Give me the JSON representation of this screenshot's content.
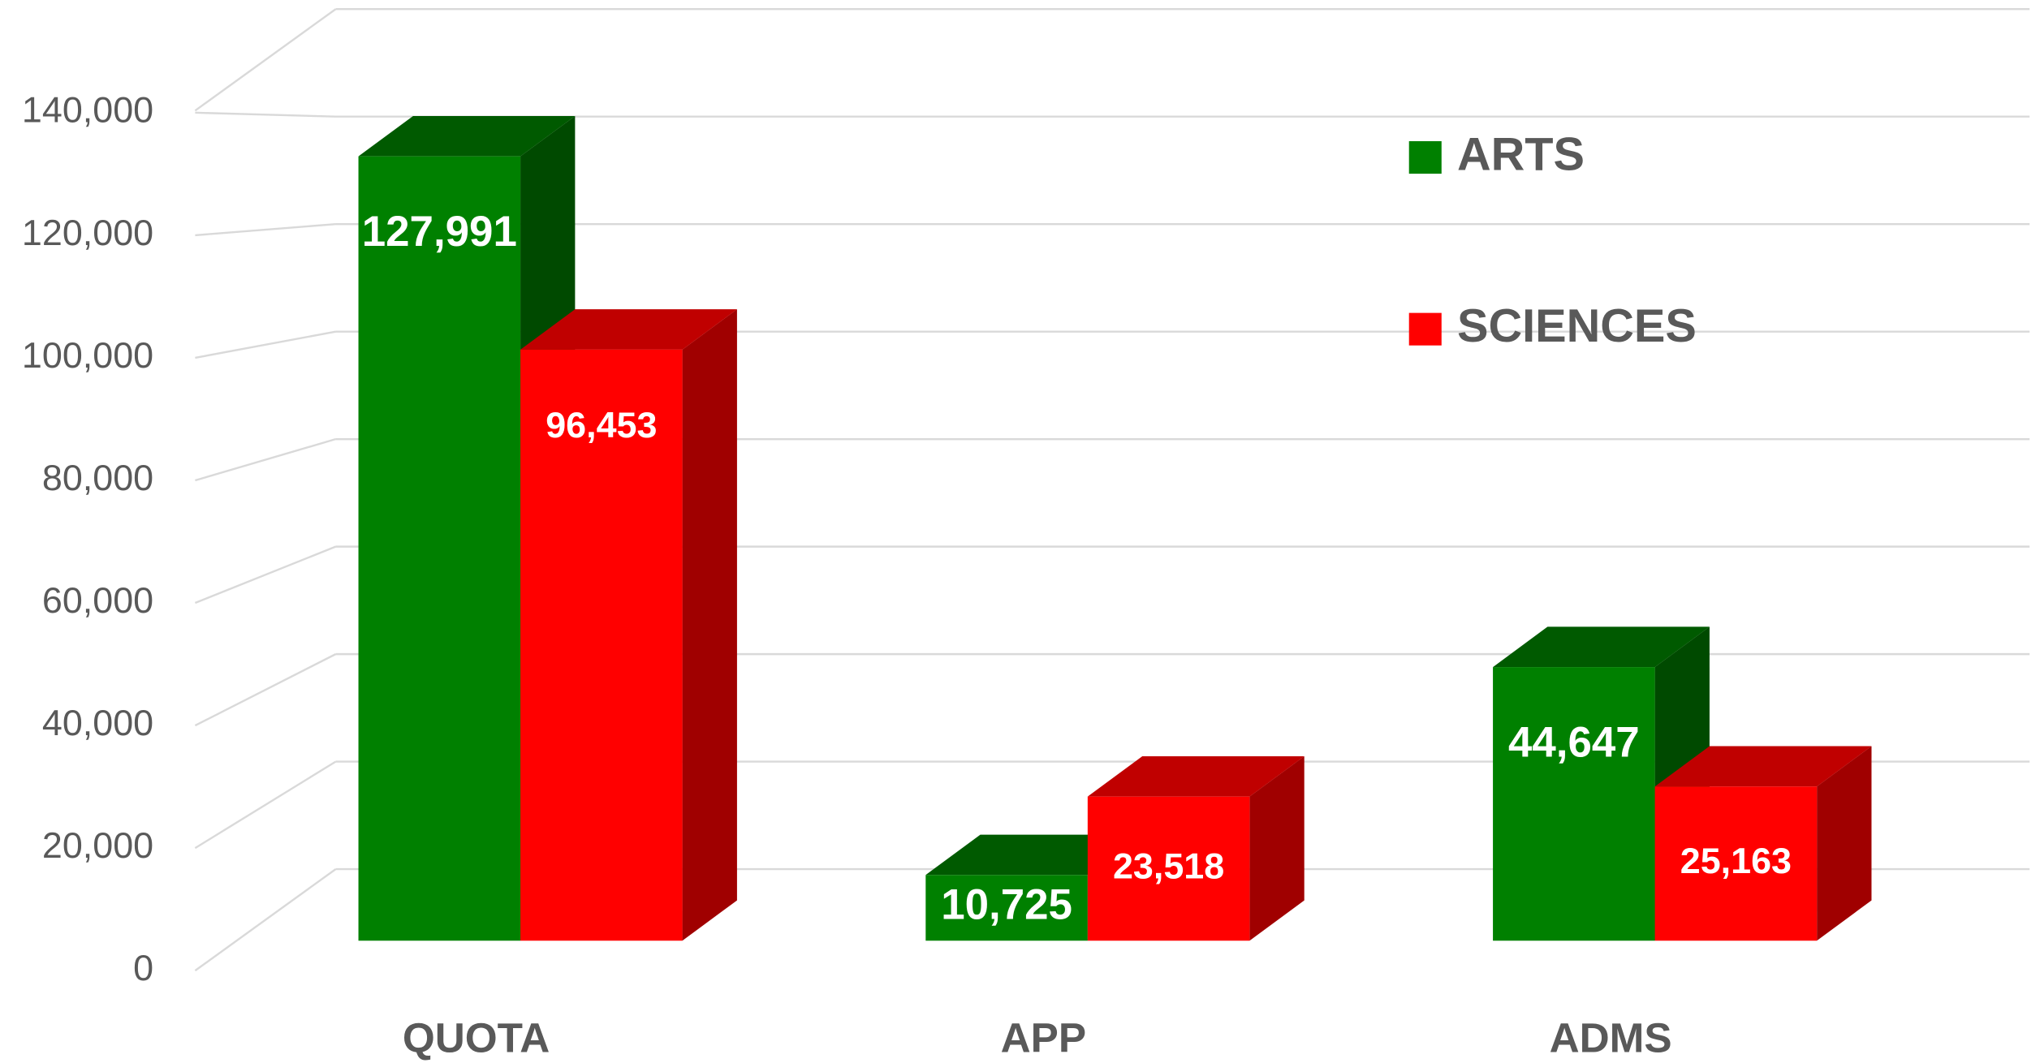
{
  "chart_data": {
    "type": "bar3d",
    "categories": [
      "QUOTA",
      "APP",
      "ADMS"
    ],
    "series": [
      {
        "name": "ARTS",
        "color": "#008000",
        "values": [
          127991,
          10725,
          44647
        ],
        "value_labels": [
          "127,991",
          "10,725",
          "44,647"
        ]
      },
      {
        "name": "SCIENCES",
        "color": "#ff0000",
        "values": [
          96453,
          23518,
          25163
        ],
        "value_labels": [
          "96,453",
          "23,518",
          "25,163"
        ]
      }
    ],
    "ylim": [
      0,
      160000
    ],
    "yticks": [
      0,
      {
        "value": 20000,
        "label": "20,000"
      },
      {
        "value": 40000,
        "label": "40,000"
      },
      {
        "value": 60000,
        "label": "60,000"
      },
      {
        "value": 80000,
        "label": "80,000"
      },
      {
        "value": 100000,
        "label": "100,000"
      },
      {
        "value": 120000,
        "label": "120,000"
      },
      {
        "value": 140000,
        "label": "140,000"
      }
    ],
    "grid": true
  }
}
